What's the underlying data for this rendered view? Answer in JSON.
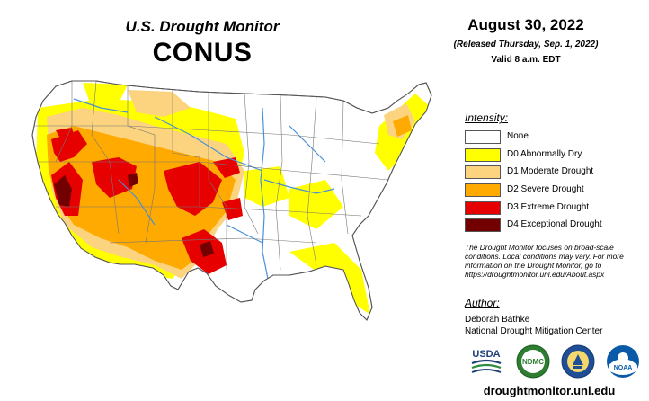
{
  "header": {
    "title": "U.S. Drought Monitor",
    "subtitle": "CONUS",
    "date": "August 30, 2022",
    "released": "(Released Thursday, Sep. 1, 2022)",
    "valid": "Valid 8 a.m. EDT"
  },
  "legend": {
    "heading": "Intensity:",
    "items": [
      {
        "label": "None",
        "color": "#ffffff"
      },
      {
        "label": "D0 Abnormally Dry",
        "color": "#ffff00"
      },
      {
        "label": "D1 Moderate Drought",
        "color": "#fcd37f"
      },
      {
        "label": "D2 Severe Drought",
        "color": "#ffaa00"
      },
      {
        "label": "D3 Extreme Drought",
        "color": "#e60000"
      },
      {
        "label": "D4 Exceptional Drought",
        "color": "#730000"
      }
    ]
  },
  "note": {
    "line1": "The Drought Monitor focuses on broad-scale",
    "line2": "conditions. Local conditions may vary. For more",
    "line3": "information on the Drought Monitor, go to",
    "line4": "https://droughtmonitor.unl.edu/About.aspx"
  },
  "author": {
    "heading": "Author:",
    "name": "Deborah Bathke",
    "organization": "National Drought Mitigation Center"
  },
  "logos": {
    "usda": "USDA",
    "ndmc": "NDMC",
    "noaa": "NOAA"
  },
  "website": "droughtmonitor.unl.edu",
  "colors": {
    "river": "#4a90d9",
    "outline": "#555555"
  }
}
